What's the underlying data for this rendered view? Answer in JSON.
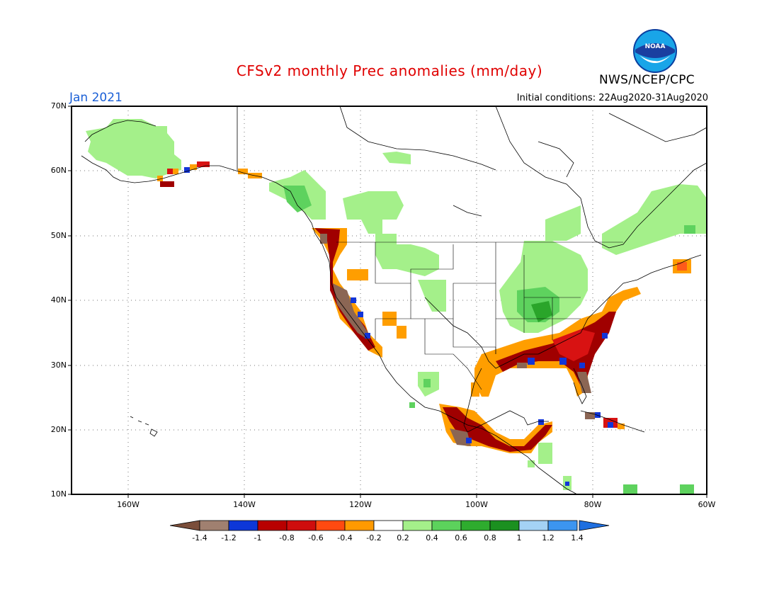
{
  "title": "CFSv2 monthly Prec anomalies (mm/day)",
  "month": "Jan 2021",
  "initial_conditions": "Initial conditions: 22Aug2020-31Aug2020",
  "agency": "NWS/NCEP/CPC",
  "logo_text": "NOAA",
  "lat_labels": [
    "70N",
    "60N",
    "50N",
    "40N",
    "30N",
    "20N",
    "10N"
  ],
  "lon_labels": [
    "160W",
    "140W",
    "120W",
    "100W",
    "80W",
    "60W"
  ],
  "colorbar": {
    "labels": [
      "-1.4",
      "-1.2",
      "-1",
      "-0.8",
      "-0.6",
      "-0.4",
      "-0.2",
      "0.2",
      "0.4",
      "0.6",
      "0.8",
      "1",
      "1.2",
      "1.4"
    ],
    "colors": [
      "#7b4e3a",
      "#a08070",
      "#0d37d8",
      "#b80000",
      "#cf0d0d",
      "#ff4a10",
      "#ff9a00",
      "#ffffff",
      "#a4f08a",
      "#5cd25c",
      "#2eac2e",
      "#1b9020",
      "#a4d2f5",
      "#3c95f0",
      "#1f6fe0"
    ]
  },
  "colors": {
    "brown": "#8b6654",
    "blue": "#1235d8",
    "darkred": "#a00000",
    "red": "#d81212",
    "orangered": "#ff5a1a",
    "orange": "#ff9e00",
    "lightgreen": "#a4f08a",
    "green": "#5ed25e",
    "darkgreen": "#2aa52a"
  }
}
